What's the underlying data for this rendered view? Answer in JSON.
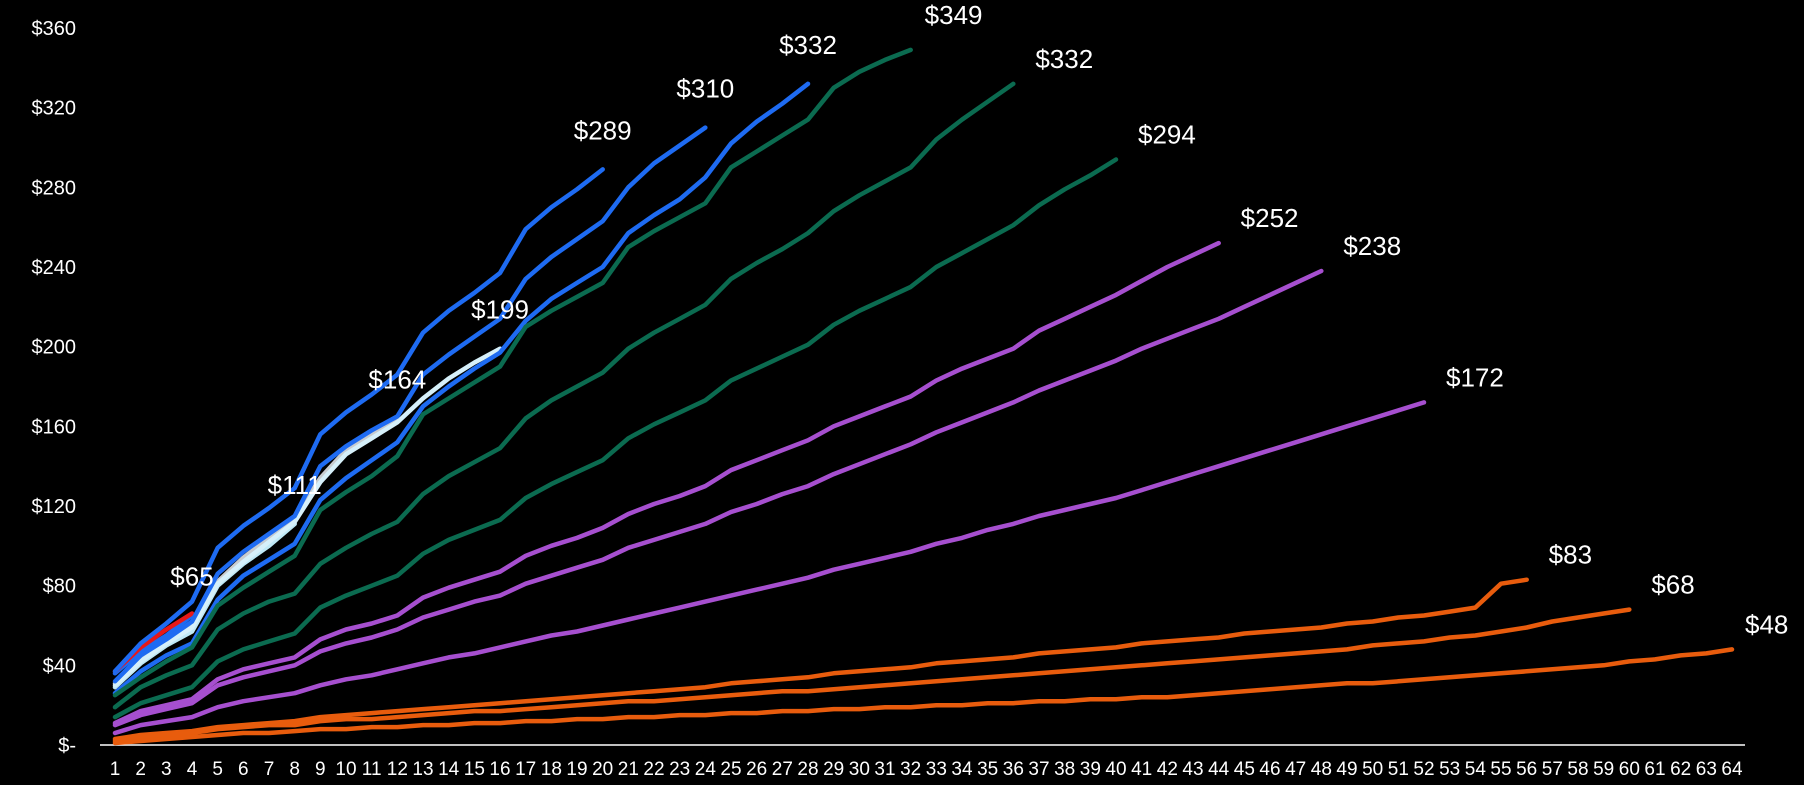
{
  "chart_data": {
    "type": "line",
    "title": "",
    "xlabel": "",
    "ylabel": "",
    "ylim": [
      0,
      360
    ],
    "xlim": [
      1,
      64
    ],
    "grid": false,
    "legend": "none",
    "y_ticks": [
      {
        "value": 0,
        "label": "$-"
      },
      {
        "value": 40,
        "label": "$40"
      },
      {
        "value": 80,
        "label": "$80"
      },
      {
        "value": 120,
        "label": "$120"
      },
      {
        "value": 160,
        "label": "$160"
      },
      {
        "value": 200,
        "label": "$200"
      },
      {
        "value": 240,
        "label": "$240"
      },
      {
        "value": 280,
        "label": "$280"
      },
      {
        "value": 320,
        "label": "$320"
      },
      {
        "value": 360,
        "label": "$360"
      }
    ],
    "x_ticks": [
      "1",
      "2",
      "3",
      "4",
      "5",
      "6",
      "7",
      "8",
      "9",
      "10",
      "11",
      "12",
      "13",
      "14",
      "15",
      "16",
      "17",
      "18",
      "19",
      "20",
      "21",
      "22",
      "23",
      "24",
      "25",
      "26",
      "27",
      "28",
      "29",
      "30",
      "31",
      "32",
      "33",
      "34",
      "35",
      "36",
      "37",
      "38",
      "39",
      "40",
      "41",
      "42",
      "43",
      "44",
      "45",
      "46",
      "47",
      "48",
      "49",
      "50",
      "51",
      "52",
      "53",
      "54",
      "55",
      "56",
      "57",
      "58",
      "59",
      "60",
      "61",
      "62",
      "63",
      "64"
    ],
    "series": [
      {
        "color": "#1e6bf2",
        "end_label": "$65",
        "x": [
          1,
          2,
          3,
          4
        ],
        "y": [
          36,
          47,
          55,
          65
        ]
      },
      {
        "color": "#e81818",
        "end_label": "",
        "x": [
          1,
          2,
          3,
          4
        ],
        "y": [
          37,
          49,
          58,
          66
        ]
      },
      {
        "color": "#bfe8f5",
        "end_label": "$111",
        "x": [
          1,
          2,
          3,
          4,
          5,
          6,
          7,
          8
        ],
        "y": [
          29,
          41,
          50,
          57,
          80,
          91,
          100,
          111
        ]
      },
      {
        "color": "#c8ccd0",
        "end_label": "$164",
        "x": [
          1,
          2,
          3,
          4,
          5,
          6,
          7,
          8,
          9,
          10,
          11,
          12
        ],
        "y": [
          31,
          43,
          52,
          60,
          82,
          94,
          104,
          114,
          134,
          148,
          156,
          164
        ]
      },
      {
        "color": "#d6f0fa",
        "end_label": "$199",
        "x": [
          1,
          2,
          3,
          4,
          5,
          6,
          7,
          8,
          9,
          10,
          11,
          12,
          13,
          14,
          15,
          16
        ],
        "y": [
          30,
          42,
          51,
          59,
          81,
          92,
          102,
          112,
          132,
          146,
          154,
          162,
          174,
          184,
          192,
          199
        ]
      },
      {
        "color": "#1e6bf2",
        "end_label": "$289",
        "x": [
          1,
          2,
          3,
          4,
          5,
          6,
          7,
          8,
          9,
          10,
          11,
          12,
          13,
          14,
          15,
          16,
          17,
          18,
          19,
          20
        ],
        "y": [
          37,
          51,
          61,
          72,
          99,
          110,
          119,
          129,
          156,
          167,
          176,
          186,
          207,
          218,
          227,
          237,
          259,
          270,
          279,
          289
        ]
      },
      {
        "color": "#1e6bf2",
        "end_label": "$310",
        "x": [
          1,
          2,
          3,
          4,
          5,
          6,
          7,
          8,
          9,
          10,
          11,
          12,
          13,
          14,
          15,
          16,
          17,
          18,
          19,
          20,
          21,
          22,
          23,
          24
        ],
        "y": [
          32,
          45,
          53,
          62,
          86,
          97,
          106,
          115,
          140,
          150,
          158,
          165,
          186,
          196,
          205,
          214,
          234,
          245,
          254,
          263,
          280,
          292,
          301,
          310
        ]
      },
      {
        "color": "#1e6bf2",
        "end_label": "$332",
        "x": [
          1,
          2,
          3,
          4,
          5,
          6,
          7,
          8,
          9,
          10,
          11,
          12,
          13,
          14,
          15,
          16,
          17,
          18,
          19,
          20,
          21,
          22,
          23,
          24,
          25,
          26,
          27,
          28
        ],
        "y": [
          26,
          37,
          45,
          51,
          73,
          85,
          93,
          101,
          123,
          134,
          143,
          152,
          170,
          180,
          189,
          197,
          213,
          224,
          232,
          240,
          257,
          266,
          274,
          285,
          302,
          313,
          322,
          332
        ]
      },
      {
        "color": "#0b6b50",
        "end_label": "$349",
        "x": [
          1,
          2,
          3,
          4,
          5,
          6,
          7,
          8,
          9,
          10,
          11,
          12,
          13,
          14,
          15,
          16,
          17,
          18,
          19,
          20,
          21,
          22,
          23,
          24,
          25,
          26,
          27,
          28,
          29,
          30,
          31,
          32
        ],
        "y": [
          25,
          34,
          42,
          49,
          70,
          79,
          87,
          95,
          118,
          127,
          135,
          145,
          166,
          174,
          182,
          190,
          210,
          218,
          225,
          232,
          250,
          258,
          265,
          272,
          290,
          298,
          306,
          314,
          330,
          338,
          344,
          349
        ]
      },
      {
        "color": "#0b6b50",
        "end_label": "$332",
        "x": [
          1,
          2,
          3,
          4,
          5,
          6,
          7,
          8,
          9,
          10,
          11,
          12,
          13,
          14,
          15,
          16,
          17,
          18,
          19,
          20,
          21,
          22,
          23,
          24,
          25,
          26,
          27,
          28,
          29,
          30,
          31,
          32,
          33,
          34,
          35,
          36
        ],
        "y": [
          19,
          29,
          35,
          40,
          58,
          66,
          72,
          76,
          91,
          99,
          106,
          112,
          126,
          135,
          142,
          149,
          164,
          173,
          180,
          187,
          199,
          207,
          214,
          221,
          234,
          242,
          249,
          257,
          268,
          276,
          283,
          290,
          304,
          314,
          323,
          332
        ]
      },
      {
        "color": "#0b6b50",
        "end_label": "$294",
        "x": [
          1,
          2,
          3,
          4,
          5,
          6,
          7,
          8,
          9,
          10,
          11,
          12,
          13,
          14,
          15,
          16,
          17,
          18,
          19,
          20,
          21,
          22,
          23,
          24,
          25,
          26,
          27,
          28,
          29,
          30,
          31,
          32,
          33,
          34,
          35,
          36,
          37,
          38,
          39,
          40
        ],
        "y": [
          14,
          21,
          25,
          29,
          42,
          48,
          52,
          56,
          69,
          75,
          80,
          85,
          96,
          103,
          108,
          113,
          124,
          131,
          137,
          143,
          154,
          161,
          167,
          173,
          183,
          189,
          195,
          201,
          211,
          218,
          224,
          230,
          240,
          247,
          254,
          261,
          271,
          279,
          286,
          294
        ]
      },
      {
        "color": "#a64fcf",
        "end_label": "$252",
        "x": [
          1,
          2,
          3,
          4,
          5,
          6,
          7,
          8,
          9,
          10,
          11,
          12,
          13,
          14,
          15,
          16,
          17,
          18,
          19,
          20,
          21,
          22,
          23,
          24,
          25,
          26,
          27,
          28,
          29,
          30,
          31,
          32,
          33,
          34,
          35,
          36,
          37,
          38,
          39,
          40,
          41,
          42,
          43,
          44
        ],
        "y": [
          11,
          17,
          20,
          23,
          33,
          38,
          41,
          44,
          53,
          58,
          61,
          65,
          74,
          79,
          83,
          87,
          95,
          100,
          104,
          109,
          116,
          121,
          125,
          130,
          138,
          143,
          148,
          153,
          160,
          165,
          170,
          175,
          183,
          189,
          194,
          199,
          208,
          214,
          220,
          226,
          233,
          240,
          246,
          252
        ]
      },
      {
        "color": "#a64fcf",
        "end_label": "$238",
        "x": [
          1,
          2,
          3,
          4,
          5,
          6,
          7,
          8,
          9,
          10,
          11,
          12,
          13,
          14,
          15,
          16,
          17,
          18,
          19,
          20,
          21,
          22,
          23,
          24,
          25,
          26,
          27,
          28,
          29,
          30,
          31,
          32,
          33,
          34,
          35,
          36,
          37,
          38,
          39,
          40,
          41,
          42,
          43,
          44,
          45,
          46,
          47,
          48
        ],
        "y": [
          10,
          15,
          18,
          21,
          30,
          34,
          37,
          40,
          47,
          51,
          54,
          58,
          64,
          68,
          72,
          75,
          81,
          85,
          89,
          93,
          99,
          103,
          107,
          111,
          117,
          121,
          126,
          130,
          136,
          141,
          146,
          151,
          157,
          162,
          167,
          172,
          178,
          183,
          188,
          193,
          199,
          204,
          209,
          214,
          220,
          226,
          232,
          238
        ]
      },
      {
        "color": "#a64fcf",
        "end_label": "$172",
        "x": [
          1,
          2,
          3,
          4,
          5,
          6,
          7,
          8,
          9,
          10,
          11,
          12,
          13,
          14,
          15,
          16,
          17,
          18,
          19,
          20,
          21,
          22,
          23,
          24,
          25,
          26,
          27,
          28,
          29,
          30,
          31,
          32,
          33,
          34,
          35,
          36,
          37,
          38,
          39,
          40,
          41,
          42,
          43,
          44,
          45,
          46,
          47,
          48,
          49,
          50,
          51,
          52
        ],
        "y": [
          6,
          10,
          12,
          14,
          19,
          22,
          24,
          26,
          30,
          33,
          35,
          38,
          41,
          44,
          46,
          49,
          52,
          55,
          57,
          60,
          63,
          66,
          69,
          72,
          75,
          78,
          81,
          84,
          88,
          91,
          94,
          97,
          101,
          104,
          108,
          111,
          115,
          118,
          121,
          124,
          128,
          132,
          136,
          140,
          144,
          148,
          152,
          156,
          160,
          164,
          168,
          172
        ]
      },
      {
        "color": "#e85c0d",
        "end_label": "$83",
        "x": [
          1,
          2,
          3,
          4,
          5,
          6,
          7,
          8,
          9,
          10,
          11,
          12,
          13,
          14,
          15,
          16,
          17,
          18,
          19,
          20,
          21,
          22,
          23,
          24,
          25,
          26,
          27,
          28,
          29,
          30,
          31,
          32,
          33,
          34,
          35,
          36,
          37,
          38,
          39,
          40,
          41,
          42,
          43,
          44,
          45,
          46,
          47,
          48,
          49,
          50,
          51,
          52,
          53,
          54,
          55,
          56
        ],
        "y": [
          3,
          5,
          6,
          7,
          9,
          10,
          11,
          12,
          14,
          15,
          16,
          17,
          18,
          19,
          20,
          21,
          22,
          23,
          24,
          25,
          26,
          27,
          28,
          29,
          31,
          32,
          33,
          34,
          36,
          37,
          38,
          39,
          41,
          42,
          43,
          44,
          46,
          47,
          48,
          49,
          51,
          52,
          53,
          54,
          56,
          57,
          58,
          59,
          61,
          62,
          64,
          65,
          67,
          69,
          81,
          83
        ]
      },
      {
        "color": "#e85c0d",
        "end_label": "$68",
        "x": [
          1,
          2,
          3,
          4,
          5,
          6,
          7,
          8,
          9,
          10,
          11,
          12,
          13,
          14,
          15,
          16,
          17,
          18,
          19,
          20,
          21,
          22,
          23,
          24,
          25,
          26,
          27,
          28,
          29,
          30,
          31,
          32,
          33,
          34,
          35,
          36,
          37,
          38,
          39,
          40,
          41,
          42,
          43,
          44,
          45,
          46,
          47,
          48,
          49,
          50,
          51,
          52,
          53,
          54,
          55,
          56,
          57,
          58,
          59,
          60
        ],
        "y": [
          2,
          4,
          5,
          6,
          8,
          9,
          10,
          10,
          12,
          13,
          13,
          14,
          15,
          16,
          17,
          17,
          18,
          19,
          20,
          21,
          22,
          22,
          23,
          24,
          25,
          26,
          27,
          27,
          28,
          29,
          30,
          31,
          32,
          33,
          34,
          35,
          36,
          37,
          38,
          39,
          40,
          41,
          42,
          43,
          44,
          45,
          46,
          47,
          48,
          50,
          51,
          52,
          54,
          55,
          57,
          59,
          62,
          64,
          66,
          68
        ]
      },
      {
        "color": "#e85c0d",
        "end_label": "$48",
        "x": [
          1,
          2,
          3,
          4,
          5,
          6,
          7,
          8,
          9,
          10,
          11,
          12,
          13,
          14,
          15,
          16,
          17,
          18,
          19,
          20,
          21,
          22,
          23,
          24,
          25,
          26,
          27,
          28,
          29,
          30,
          31,
          32,
          33,
          34,
          35,
          36,
          37,
          38,
          39,
          40,
          41,
          42,
          43,
          44,
          45,
          46,
          47,
          48,
          49,
          50,
          51,
          52,
          53,
          54,
          55,
          56,
          57,
          58,
          59,
          60,
          61,
          62,
          63,
          64
        ],
        "y": [
          1,
          2,
          3,
          4,
          5,
          6,
          6,
          7,
          8,
          8,
          9,
          9,
          10,
          10,
          11,
          11,
          12,
          12,
          13,
          13,
          14,
          14,
          15,
          15,
          16,
          16,
          17,
          17,
          18,
          18,
          19,
          19,
          20,
          20,
          21,
          21,
          22,
          22,
          23,
          23,
          24,
          24,
          25,
          26,
          27,
          28,
          29,
          30,
          31,
          31,
          32,
          33,
          34,
          35,
          36,
          37,
          38,
          39,
          40,
          42,
          43,
          45,
          46,
          48
        ]
      }
    ]
  }
}
